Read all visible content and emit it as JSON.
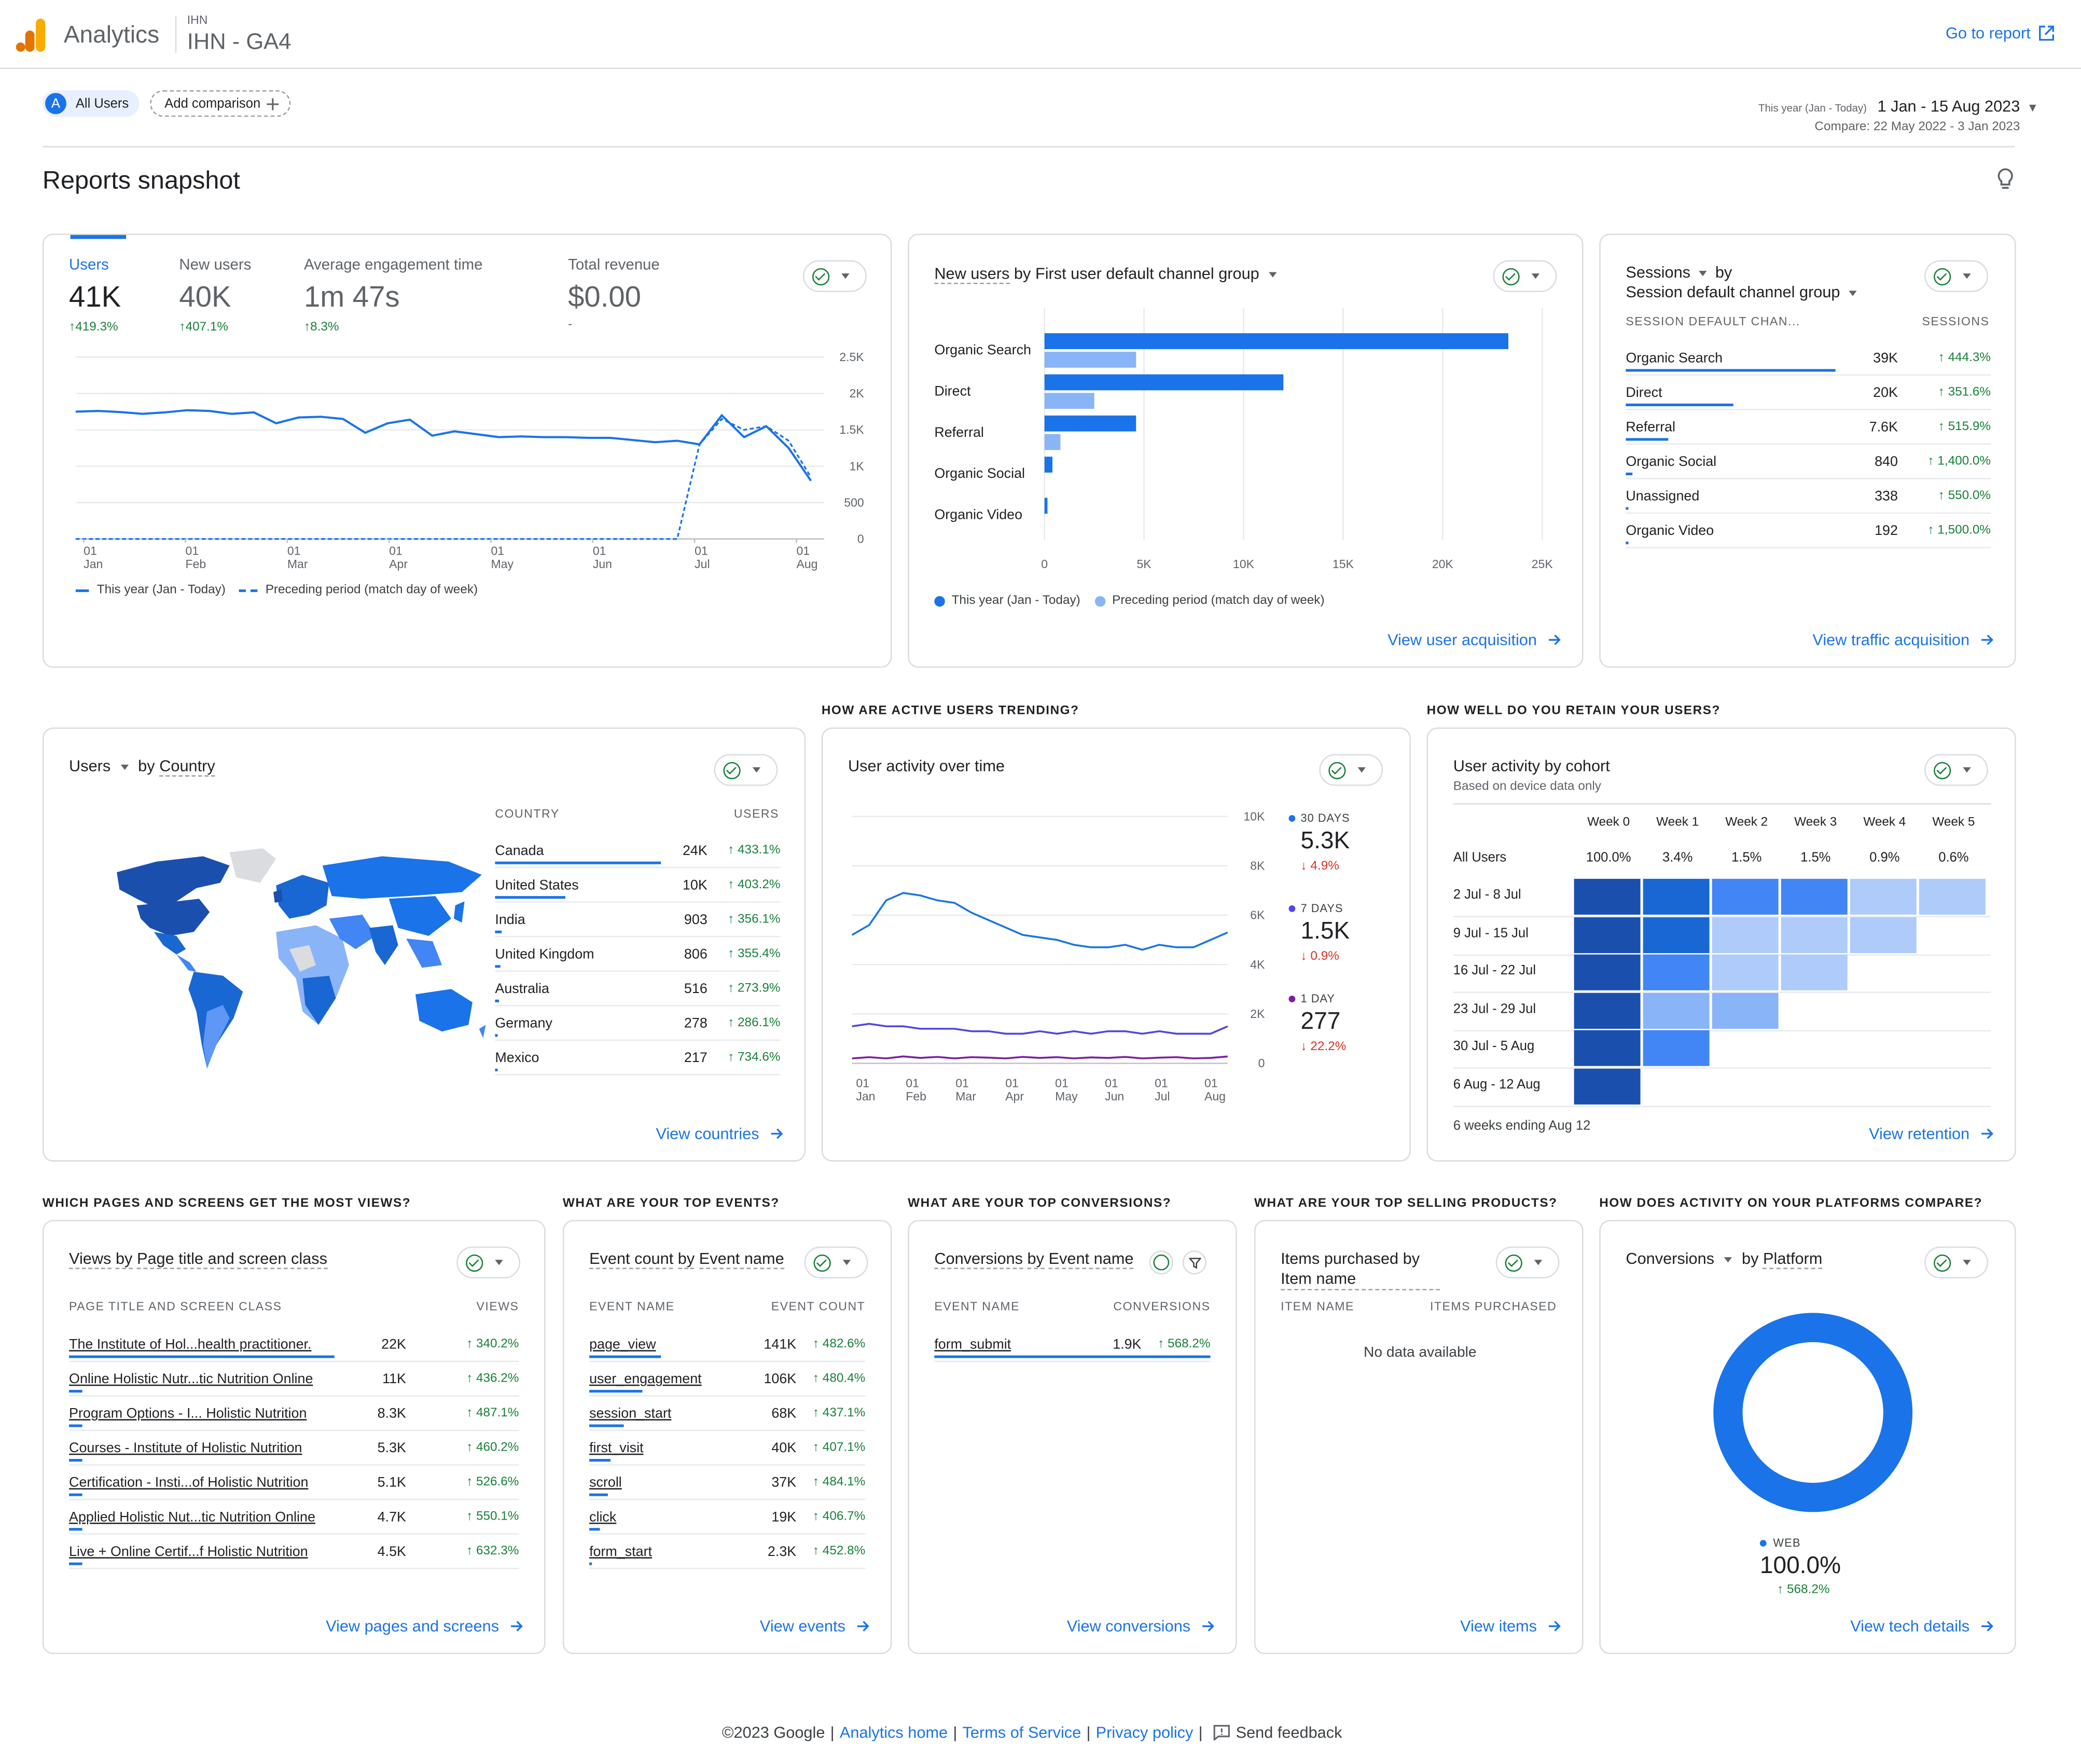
{
  "header": {
    "app_name": "Analytics",
    "property_account": "IHN",
    "property_name": "IHN - GA4",
    "goto_report": "Go to report"
  },
  "comparison": {
    "all_users_badge": "A",
    "all_users": "All Users",
    "add_comparison": "Add comparison"
  },
  "date": {
    "preset": "This year (Jan - Today)",
    "range": "1 Jan - 15 Aug 2023",
    "compare": "Compare: 22 May 2022 - 3 Jan 2023"
  },
  "page_title": "Reports snapshot",
  "overview": {
    "kpis": [
      {
        "label": "Users",
        "value": "41K",
        "change": "419.3%"
      },
      {
        "label": "New users",
        "value": "40K",
        "change": "407.1%"
      },
      {
        "label": "Average engagement time",
        "value": "1m 47s",
        "change": "8.3%"
      },
      {
        "label": "Total revenue",
        "value": "$0.00",
        "change": "-"
      }
    ],
    "legend_current": "This year (Jan - Today)",
    "legend_previous": "Preceding period (match day of week)"
  },
  "acquisition": {
    "title_metric": "New users",
    "title_by": "by",
    "title_dim": "First user default channel group",
    "legend_current": "This year (Jan - Today)",
    "legend_previous": "Preceding period (match day of week)",
    "link": "View user acquisition"
  },
  "traffic": {
    "title_metric": "Sessions",
    "title_by": "by",
    "title_dim": "Session default channel group",
    "col1": "SESSION DEFAULT CHAN...",
    "col2": "SESSIONS",
    "rows": [
      {
        "name": "Organic Search",
        "value": "39K",
        "change": "444.3%",
        "share": 1.0
      },
      {
        "name": "Direct",
        "value": "20K",
        "change": "351.6%",
        "share": 0.51
      },
      {
        "name": "Referral",
        "value": "7.6K",
        "change": "515.9%",
        "share": 0.2
      },
      {
        "name": "Organic Social",
        "value": "840",
        "change": "1,400.0%",
        "share": 0.03
      },
      {
        "name": "Unassigned",
        "value": "338",
        "change": "550.0%",
        "share": 0.01
      },
      {
        "name": "Organic Video",
        "value": "192",
        "change": "1,500.0%",
        "share": 0.01
      }
    ],
    "link": "View traffic acquisition"
  },
  "sections": {
    "trending": "HOW ARE ACTIVE USERS TRENDING?",
    "retain": "HOW WELL DO YOU RETAIN YOUR USERS?",
    "pages": "WHICH PAGES AND SCREENS GET THE MOST VIEWS?",
    "events": "WHAT ARE YOUR TOP EVENTS?",
    "conversions": "WHAT ARE YOUR TOP CONVERSIONS?",
    "products": "WHAT ARE YOUR TOP SELLING PRODUCTS?",
    "platforms": "HOW DOES ACTIVITY ON YOUR PLATFORMS COMPARE?"
  },
  "country": {
    "title_metric": "Users",
    "title_by": "by",
    "title_dim": "Country",
    "col1": "COUNTRY",
    "col2": "USERS",
    "rows": [
      {
        "name": "Canada",
        "value": "24K",
        "change": "433.1%",
        "share": 1.0
      },
      {
        "name": "United States",
        "value": "10K",
        "change": "403.2%",
        "share": 0.42
      },
      {
        "name": "India",
        "value": "903",
        "change": "356.1%",
        "share": 0.04
      },
      {
        "name": "United Kingdom",
        "value": "806",
        "change": "355.4%",
        "share": 0.03
      },
      {
        "name": "Australia",
        "value": "516",
        "change": "273.9%",
        "share": 0.02
      },
      {
        "name": "Germany",
        "value": "278",
        "change": "286.1%",
        "share": 0.01
      },
      {
        "name": "Mexico",
        "value": "217",
        "change": "734.6%",
        "share": 0.01
      }
    ],
    "link": "View countries"
  },
  "activity": {
    "title": "User activity over time",
    "series": [
      {
        "label": "30 DAYS",
        "value": "5.3K",
        "change": "4.9%",
        "color": "#1a73e8"
      },
      {
        "label": "7 DAYS",
        "value": "1.5K",
        "change": "0.9%",
        "color": "#4f46e5"
      },
      {
        "label": "1 DAY",
        "value": "277",
        "change": "22.2%",
        "color": "#7b1fa2"
      }
    ]
  },
  "cohort": {
    "title": "User activity by cohort",
    "subtitle": "Based on device data only",
    "weeks": [
      "Week 0",
      "Week 1",
      "Week 2",
      "Week 3",
      "Week 4",
      "Week 5"
    ],
    "all_users_label": "All Users",
    "all_users_values": [
      "100.0%",
      "3.4%",
      "1.5%",
      "1.5%",
      "0.9%",
      "0.6%"
    ],
    "rows": [
      {
        "label": "2 Jul - 8 Jul",
        "levels": [
          5,
          4,
          3,
          3,
          1,
          1
        ]
      },
      {
        "label": "9 Jul - 15 Jul",
        "levels": [
          5,
          4,
          1,
          1,
          1
        ]
      },
      {
        "label": "16 Jul - 22 Jul",
        "levels": [
          5,
          3,
          1,
          1
        ]
      },
      {
        "label": "23 Jul - 29 Jul",
        "levels": [
          5,
          2,
          2
        ]
      },
      {
        "label": "30 Jul - 5 Aug",
        "levels": [
          5,
          3
        ]
      },
      {
        "label": "6 Aug - 12 Aug",
        "levels": [
          5
        ]
      }
    ],
    "footer": "6 weeks ending Aug 12",
    "link": "View retention"
  },
  "pages": {
    "title_metric": "Views",
    "title_by": "by",
    "title_dim": "Page title and screen class",
    "col1": "PAGE TITLE AND SCREEN CLASS",
    "col2": "VIEWS",
    "rows": [
      {
        "name": "The Institute of Hol...health practitioner.",
        "value": "22K",
        "change": "340.2%",
        "share": 1.0
      },
      {
        "name": "Online Holistic Nutr...tic Nutrition Online",
        "value": "11K",
        "change": "436.2%",
        "share": 0.05
      },
      {
        "name": "Program Options - I... Holistic Nutrition",
        "value": "8.3K",
        "change": "487.1%",
        "share": 0.05
      },
      {
        "name": "Courses - Institute of Holistic Nutrition",
        "value": "5.3K",
        "change": "460.2%",
        "share": 0.05
      },
      {
        "name": "Certification - Insti...of Holistic Nutrition",
        "value": "5.1K",
        "change": "526.6%",
        "share": 0.05
      },
      {
        "name": "Applied Holistic Nut...tic Nutrition Online",
        "value": "4.7K",
        "change": "550.1%",
        "share": 0.05
      },
      {
        "name": "Live + Online Certif...f Holistic Nutrition",
        "value": "4.5K",
        "change": "632.3%",
        "share": 0.05
      }
    ],
    "link": "View pages and screens"
  },
  "events": {
    "title_metric": "Event count",
    "title_by": "by",
    "title_dim": "Event name",
    "col1": "EVENT NAME",
    "col2": "EVENT COUNT",
    "rows": [
      {
        "name": "page_view",
        "value": "141K",
        "change": "482.6%",
        "share": 0.27
      },
      {
        "name": "user_engagement",
        "value": "106K",
        "change": "480.4%",
        "share": 0.2
      },
      {
        "name": "session_start",
        "value": "68K",
        "change": "437.1%",
        "share": 0.13
      },
      {
        "name": "first_visit",
        "value": "40K",
        "change": "407.1%",
        "share": 0.08
      },
      {
        "name": "scroll",
        "value": "37K",
        "change": "484.1%",
        "share": 0.07
      },
      {
        "name": "click",
        "value": "19K",
        "change": "406.7%",
        "share": 0.04
      },
      {
        "name": "form_start",
        "value": "2.3K",
        "change": "452.8%",
        "share": 0.01
      }
    ],
    "link": "View events"
  },
  "conversions": {
    "title_metric": "Conversions",
    "title_by": "by",
    "title_dim": "Event name",
    "col1": "EVENT NAME",
    "col2": "CONVERSIONS",
    "rows": [
      {
        "name": "form_submit",
        "value": "1.9K",
        "change": "568.2%",
        "share": 1.0
      }
    ],
    "link": "View conversions"
  },
  "products": {
    "title": "Items purchased by Item name",
    "col1": "ITEM NAME",
    "col2": "ITEMS PURCHASED",
    "empty": "No data available",
    "link": "View items"
  },
  "platforms": {
    "title_metric": "Conversions",
    "title_by": "by",
    "title_dim": "Platform",
    "legend": "WEB",
    "value": "100.0%",
    "change": "568.2%",
    "link": "View tech details"
  },
  "footer": {
    "copyright": "©2023 Google",
    "analytics_home": "Analytics home",
    "terms": "Terms of Service",
    "privacy": "Privacy policy",
    "feedback": "Send feedback"
  },
  "chart_data": [
    {
      "type": "line",
      "title": "",
      "x_labels": [
        "01 Jan",
        "01 Feb",
        "01 Mar",
        "01 Apr",
        "01 May",
        "01 Jun",
        "01 Jul",
        "01 Aug"
      ],
      "ylim": [
        0,
        2500
      ],
      "y_ticks": [
        "2.5K",
        "2K",
        "1.5K",
        "1K",
        "500",
        "0"
      ],
      "series": [
        {
          "name": "This year (Jan - Today)",
          "values": [
            1750,
            1760,
            1745,
            1720,
            1740,
            1770,
            1760,
            1720,
            1740,
            1590,
            1670,
            1680,
            1650,
            1460,
            1590,
            1640,
            1420,
            1480,
            1440,
            1400,
            1410,
            1400,
            1400,
            1390,
            1390,
            1360,
            1330,
            1350,
            1300,
            1700,
            1400,
            1550,
            1250,
            800
          ]
        },
        {
          "name": "Preceding period (match day of week)",
          "values": [
            0,
            0,
            0,
            0,
            0,
            0,
            0,
            0,
            0,
            0,
            0,
            0,
            0,
            0,
            0,
            0,
            0,
            0,
            0,
            0,
            0,
            0,
            0,
            0,
            0,
            0,
            0,
            0,
            1300,
            1650,
            1500,
            1550,
            1350,
            850
          ]
        }
      ]
    },
    {
      "type": "bar",
      "title": "",
      "orientation": "horizontal",
      "categories": [
        "Organic Search",
        "Direct",
        "Referral",
        "Organic Social",
        "Organic Video"
      ],
      "xlim": [
        0,
        25000
      ],
      "x_ticks": [
        "0",
        "5K",
        "10K",
        "15K",
        "20K",
        "25K"
      ],
      "series": [
        {
          "name": "This year (Jan - Today)",
          "values": [
            23300,
            12000,
            4600,
            400,
            150
          ]
        },
        {
          "name": "Preceding period (match day of week)",
          "values": [
            4600,
            2500,
            800,
            0,
            0
          ]
        }
      ]
    },
    {
      "type": "line",
      "title": "",
      "x_labels": [
        "01 Jan",
        "01 Feb",
        "01 Mar",
        "01 Apr",
        "01 May",
        "01 Jun",
        "01 Jul",
        "01 Aug"
      ],
      "ylim": [
        0,
        10000
      ],
      "y_ticks": [
        "10K",
        "8K",
        "6K",
        "4K",
        "2K",
        "0"
      ],
      "series": [
        {
          "name": "30 DAYS",
          "values": [
            5200,
            5600,
            6600,
            6900,
            6800,
            6600,
            6500,
            6100,
            5800,
            5500,
            5200,
            5100,
            5000,
            4800,
            4700,
            4700,
            4800,
            4600,
            4800,
            4700,
            4700,
            5000,
            5300
          ]
        },
        {
          "name": "7 DAYS",
          "values": [
            1500,
            1600,
            1500,
            1500,
            1400,
            1400,
            1400,
            1300,
            1300,
            1200,
            1200,
            1300,
            1200,
            1300,
            1200,
            1300,
            1300,
            1200,
            1300,
            1200,
            1200,
            1200,
            1500
          ]
        },
        {
          "name": "1 DAY",
          "values": [
            200,
            250,
            200,
            280,
            220,
            260,
            200,
            250,
            230,
            200,
            260,
            220,
            250,
            200,
            240,
            220,
            260,
            200,
            230,
            250,
            200,
            220,
            277
          ]
        }
      ]
    },
    {
      "type": "pie",
      "title": "",
      "categories": [
        "WEB"
      ],
      "values": [
        100
      ]
    }
  ]
}
